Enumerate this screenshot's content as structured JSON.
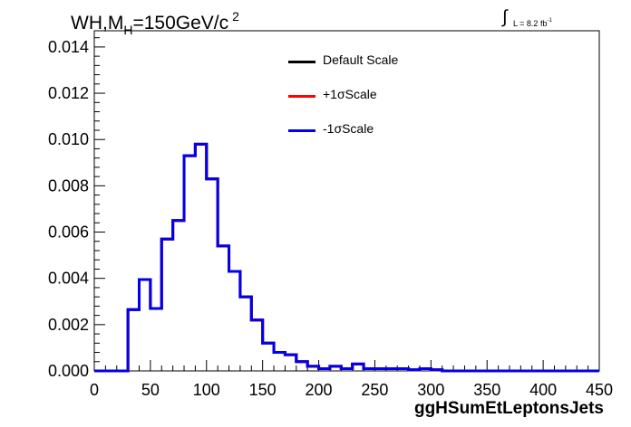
{
  "title": {
    "main": "WH,M",
    "sub": "H",
    "mid": "=150GeV/c",
    "sup": "2"
  },
  "lumi": {
    "symbol": "∫",
    "text": "L = 8.2 fb",
    "sup": "-1"
  },
  "chart_data": {
    "type": "line",
    "style": "step-histogram",
    "xlabel": "ggHSumEtLeptonsJets",
    "ylabel": "",
    "xlim": [
      0,
      450
    ],
    "ylim": [
      0,
      0.0147
    ],
    "xticks": [
      0,
      50,
      100,
      150,
      200,
      250,
      300,
      350,
      400,
      450
    ],
    "xtick_labels": [
      "0",
      "50",
      "100",
      "150",
      "200",
      "250",
      "300",
      "350",
      "400",
      "450"
    ],
    "yticks": [
      0,
      0.002,
      0.004,
      0.006,
      0.008,
      0.01,
      0.012,
      0.014
    ],
    "ytick_labels": [
      "0.000",
      "0.002",
      "0.004",
      "0.006",
      "0.008",
      "0.010",
      "0.012",
      "0.014"
    ],
    "bin_width": 10,
    "bin_edges_start": 0,
    "grid": false,
    "legend_position": "top-center",
    "series": [
      {
        "name": "Default Scale",
        "color": "#000000",
        "values": [
          0,
          0,
          0,
          0.00265,
          0.00395,
          0.0027,
          0.0057,
          0.0065,
          0.0093,
          0.0098,
          0.0083,
          0.0054,
          0.0043,
          0.0032,
          0.0022,
          0.0012,
          0.0008,
          0.0007,
          0.0004,
          0.0002,
          0.0001,
          0.0002,
          0.0001,
          0.0003,
          0.0001,
          0.0001,
          0.0001,
          0.0001,
          5e-05,
          0.0001,
          5e-05,
          0,
          0,
          0,
          0,
          0,
          0,
          0,
          0,
          0,
          0,
          0,
          0,
          0,
          0
        ]
      },
      {
        "name": "+1σScale",
        "color": "#ff0000",
        "values": [
          0,
          0,
          0,
          0.00265,
          0.00395,
          0.0027,
          0.0057,
          0.0065,
          0.0093,
          0.0098,
          0.0083,
          0.0054,
          0.0043,
          0.0032,
          0.0022,
          0.0012,
          0.0008,
          0.0007,
          0.0004,
          0.0002,
          0.0001,
          0.0002,
          0.0001,
          0.0003,
          0.0001,
          0.0001,
          0.0001,
          0.0001,
          5e-05,
          0.0001,
          5e-05,
          0,
          0,
          0,
          0,
          0,
          0,
          0,
          0,
          0,
          0,
          0,
          0,
          0,
          0
        ]
      },
      {
        "name": "-1σScale",
        "color": "#0000ee",
        "values": [
          0,
          0,
          0,
          0.00265,
          0.00395,
          0.0027,
          0.0057,
          0.0065,
          0.0093,
          0.0098,
          0.0083,
          0.0054,
          0.0043,
          0.0032,
          0.0022,
          0.0012,
          0.0008,
          0.0007,
          0.0004,
          0.0002,
          0.0001,
          0.0002,
          0.0001,
          0.0003,
          0.0001,
          0.0001,
          0.0001,
          0.0001,
          5e-05,
          0.0001,
          5e-05,
          0,
          0,
          0,
          0,
          0,
          0,
          0,
          0,
          0,
          0,
          0,
          0,
          0,
          0
        ]
      }
    ]
  }
}
